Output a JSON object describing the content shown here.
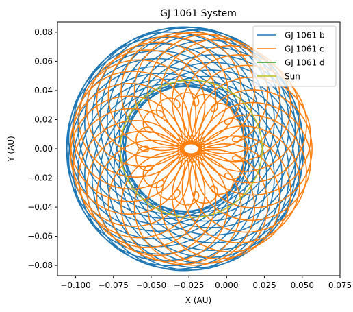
{
  "chart_data": {
    "type": "line",
    "title": "GJ 1061 System",
    "xlabel": "X (AU)",
    "ylabel": "Y (AU)",
    "xlim": [
      -0.112,
      0.075
    ],
    "ylim": [
      -0.087,
      0.087
    ],
    "x_ticks": [
      -0.1,
      -0.075,
      -0.05,
      -0.025,
      0.0,
      0.025,
      0.05,
      0.075
    ],
    "x_tick_labels": [
      "−0.100",
      "−0.075",
      "−0.050",
      "−0.025",
      "0.000",
      "0.025",
      "0.050",
      "0.075"
    ],
    "y_ticks": [
      -0.08,
      -0.06,
      -0.04,
      -0.02,
      0.0,
      0.02,
      0.04,
      0.06,
      0.08
    ],
    "y_tick_labels": [
      "−0.08",
      "−0.06",
      "−0.04",
      "−0.02",
      "0.00",
      "0.02",
      "0.04",
      "0.06",
      "0.08"
    ],
    "grid": false,
    "legend_position": "top-right",
    "series": [
      {
        "name": "GJ 1061 b",
        "color": "#1f77b4",
        "loops": 24,
        "precession_center": [
          -0.0275,
          0.0
        ],
        "precession_radius": 0.0195,
        "orbit_radius": 0.059
      },
      {
        "name": "GJ 1061 c",
        "color": "#ff7f0e",
        "loops": 30,
        "precession_center": [
          -0.0235,
          0.0
        ],
        "precession_radius": 0.0425,
        "orbit_radius": 0.0375,
        "epicycles": 16,
        "epicycle_center": [
          -0.0235,
          0.0
        ],
        "epicycle_radius": 0.0325,
        "epicycle_loop_radius": 0.0046
      },
      {
        "name": "GJ 1061 d",
        "color": "#2ca02c"
      },
      {
        "name": "Sun",
        "color": "#bcbd22",
        "center": [
          -0.0235,
          0.0
        ],
        "radius": 0.047
      }
    ]
  }
}
